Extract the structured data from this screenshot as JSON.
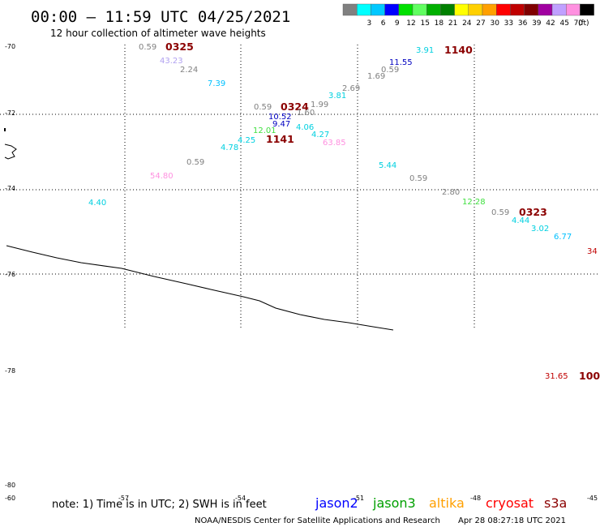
{
  "header": {
    "title": "00:00 – 11:59 UTC 04/25/2021",
    "subtitle": "12 hour collection of altimeter wave heights"
  },
  "legend": {
    "unit": "(ft)",
    "swatches": [
      {
        "label": "",
        "color": "#808080"
      },
      {
        "label": "3",
        "color": "#00ffff"
      },
      {
        "label": "6",
        "color": "#00c8ff"
      },
      {
        "label": "9",
        "color": "#0000ff"
      },
      {
        "label": "12",
        "color": "#00e000"
      },
      {
        "label": "15",
        "color": "#60ff60"
      },
      {
        "label": "18",
        "color": "#00b000"
      },
      {
        "label": "21",
        "color": "#008000"
      },
      {
        "label": "24",
        "color": "#ffff00"
      },
      {
        "label": "27",
        "color": "#ffd000"
      },
      {
        "label": "30",
        "color": "#ffa000"
      },
      {
        "label": "33",
        "color": "#ff0000"
      },
      {
        "label": "36",
        "color": "#c00000"
      },
      {
        "label": "39",
        "color": "#800000"
      },
      {
        "label": "42",
        "color": "#a000a0"
      },
      {
        "label": "45",
        "color": "#c0a0ff"
      },
      {
        "label": "70",
        "color": "#ff90e0"
      },
      {
        "label": "",
        "color": "#000000"
      }
    ]
  },
  "axes": {
    "lat_labels": [
      "-70",
      "-72",
      "-74",
      "-76",
      "-78",
      "-80"
    ],
    "lon_labels": [
      "-60",
      "-57",
      "-54",
      "-51",
      "-48",
      "-45"
    ]
  },
  "points": [
    {
      "text": "0.59",
      "color": "#808080"
    },
    {
      "text": "0325",
      "color": "#8b0000",
      "bold": true
    },
    {
      "text": "43.23",
      "color": "#b0a0f0"
    },
    {
      "text": "2.24",
      "color": "#808080"
    },
    {
      "text": "7.39",
      "color": "#00c0ff"
    },
    {
      "text": "3.91",
      "color": "#00d0e0"
    },
    {
      "text": "1140",
      "color": "#8b0000",
      "bold": true
    },
    {
      "text": "11.55",
      "color": "#0000c0"
    },
    {
      "text": "0.59",
      "color": "#808080"
    },
    {
      "text": "1.69",
      "color": "#808080"
    },
    {
      "text": "2.69",
      "color": "#808080"
    },
    {
      "text": "3.81",
      "color": "#00d0e0"
    },
    {
      "text": "1.99",
      "color": "#808080"
    },
    {
      "text": "0.59",
      "color": "#808080"
    },
    {
      "text": "0324",
      "color": "#8b0000",
      "bold": true
    },
    {
      "text": "1.60",
      "color": "#808080"
    },
    {
      "text": "10.52",
      "color": "#0000c0"
    },
    {
      "text": "9.47",
      "color": "#0000c0"
    },
    {
      "text": "4.06",
      "color": "#00d0e0"
    },
    {
      "text": "12.01",
      "color": "#40e040"
    },
    {
      "text": "4.27",
      "color": "#00d0e0"
    },
    {
      "text": "4.25",
      "color": "#00d0e0"
    },
    {
      "text": "1141",
      "color": "#8b0000",
      "bold": true
    },
    {
      "text": "63.85",
      "color": "#ff90e0"
    },
    {
      "text": "4.78",
      "color": "#00d0e0"
    },
    {
      "text": "0.59",
      "color": "#808080"
    },
    {
      "text": "5.44",
      "color": "#00d0e0"
    },
    {
      "text": "54.80",
      "color": "#ff90e0"
    },
    {
      "text": "0.59",
      "color": "#808080"
    },
    {
      "text": "2.80",
      "color": "#808080"
    },
    {
      "text": "12.28",
      "color": "#40e040"
    },
    {
      "text": "4.40",
      "color": "#00d0e0"
    },
    {
      "text": "0.59",
      "color": "#808080"
    },
    {
      "text": "0323",
      "color": "#8b0000",
      "bold": true
    },
    {
      "text": "4.44",
      "color": "#00d0e0"
    },
    {
      "text": "3.02",
      "color": "#00d0e0"
    },
    {
      "text": "6.77",
      "color": "#00c0ff"
    },
    {
      "text": "34",
      "color": "#c00000"
    },
    {
      "text": "31.65",
      "color": "#c00000"
    },
    {
      "text": "100",
      "color": "#8b0000",
      "bold": true
    }
  ],
  "footer": {
    "note": "note:  1) Time is in UTC;  2) SWH is in feet",
    "satellites": [
      {
        "name": "jason2",
        "color": "#0000ff"
      },
      {
        "name": "jason3",
        "color": "#00a000"
      },
      {
        "name": "altika",
        "color": "#ffa000"
      },
      {
        "name": "cryosat",
        "color": "#ff0000"
      },
      {
        "name": "s3a",
        "color": "#8b0000"
      }
    ],
    "credit": "NOAA/NESDIS Center for Satellite Applications and Research",
    "timestamp": "Apr 28 08:27:18 UTC 2021"
  }
}
